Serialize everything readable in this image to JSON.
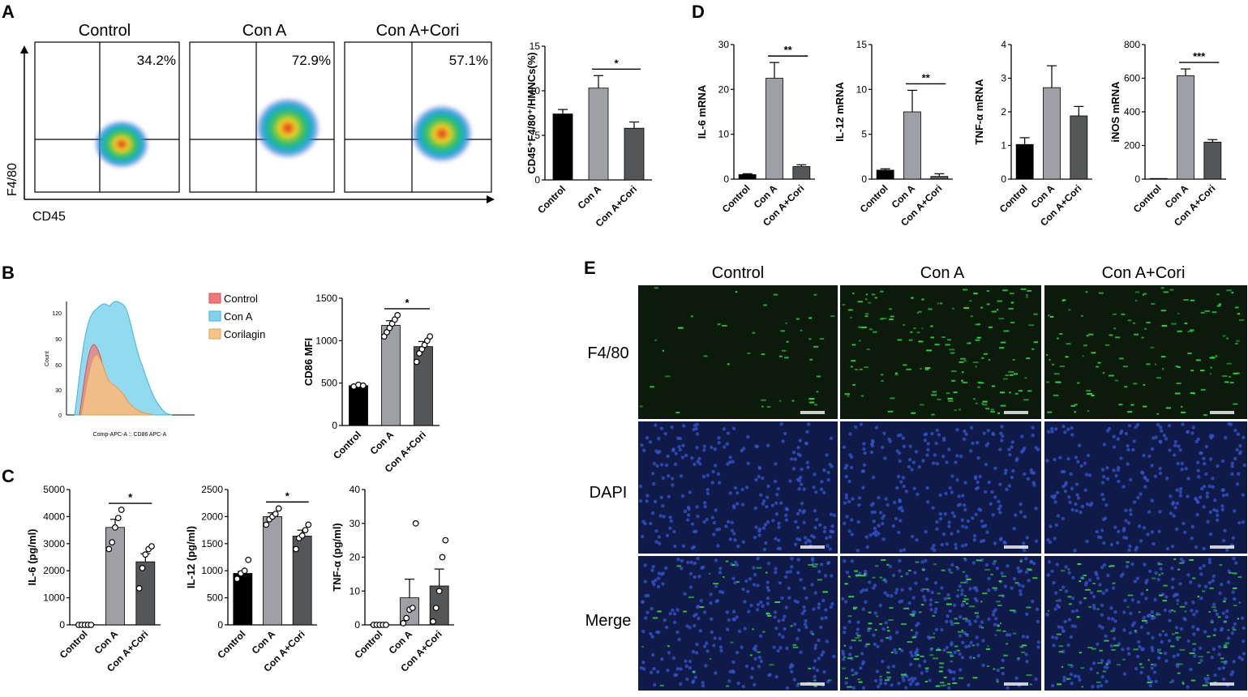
{
  "panels": {
    "A": {
      "label": "A",
      "flow": {
        "titles": [
          "Control",
          "Con A",
          "Con A+Cori"
        ],
        "percents": [
          "34.2%",
          "72.9%",
          "57.1%"
        ],
        "ylabel": "F4/80",
        "xlabel": "CD45"
      }
    },
    "B": {
      "label": "B",
      "legend": [
        "Control",
        "Con A",
        "Corilagin"
      ],
      "hist_ylabel": "Count",
      "hist_xlabel": "Comp-APC-A :: CD86 APC-A",
      "hist_yticks": [
        "0",
        "30",
        "60",
        "90",
        "120"
      ]
    },
    "C": {
      "label": "C"
    },
    "D": {
      "label": "D"
    },
    "E": {
      "label": "E",
      "columns": [
        "Control",
        "Con A",
        "Con A+Cori"
      ],
      "rows": [
        "F4/80",
        "DAPI",
        "Merge"
      ]
    }
  },
  "colors": {
    "control": "#000000",
    "conA": "#9ea0a5",
    "conACori": "#555658",
    "hist_control": "#f07a7a",
    "hist_conA": "#7fd4ec",
    "hist_cori": "#f3c486",
    "f480": "#2ecc40",
    "dapi": "#2a50c8"
  },
  "chart_data": [
    {
      "id": "A-bar",
      "type": "bar",
      "categories": [
        "Control",
        "Con A",
        "Con A+Cori"
      ],
      "values": [
        7.4,
        10.3,
        5.8
      ],
      "errors": [
        0.5,
        1.4,
        0.7
      ],
      "ylabel": "CD45⁺F4/80⁺/HMNCs(%)",
      "ylim": [
        0,
        15
      ],
      "yticks": [
        "0",
        "5",
        "10",
        "15"
      ],
      "sig": [
        {
          "from": 1,
          "to": 2,
          "label": "*"
        }
      ]
    },
    {
      "id": "B-bar",
      "type": "bar",
      "categories": [
        "Control",
        "Con A",
        "Con A+Cori"
      ],
      "values": [
        470,
        1180,
        930
      ],
      "errors": [
        12,
        55,
        60
      ],
      "points": [
        [
          460,
          480,
          470
        ],
        [
          1050,
          1100,
          1150,
          1200,
          1250,
          1300
        ],
        [
          750,
          850,
          900,
          950,
          1000,
          1050
        ]
      ],
      "ylabel": "CD86 MFI",
      "ylim": [
        0,
        1500
      ],
      "yticks": [
        "0",
        "500",
        "1000",
        "1500"
      ],
      "sig": [
        {
          "from": 1,
          "to": 2,
          "label": "*"
        }
      ]
    },
    {
      "id": "C-IL6",
      "type": "bar",
      "categories": [
        "Control",
        "Con A",
        "Con A+Cori"
      ],
      "values": [
        0,
        3600,
        2330
      ],
      "errors": [
        0,
        300,
        300
      ],
      "points": [
        [
          0,
          0,
          0,
          0,
          0
        ],
        [
          2800,
          3050,
          3600,
          3950,
          4250
        ],
        [
          1350,
          2100,
          2600,
          2800,
          2900
        ]
      ],
      "ylabel": "IL-6 (pg/ml)",
      "ylim": [
        0,
        5000
      ],
      "yticks": [
        "0",
        "1000",
        "2000",
        "3000",
        "4000",
        "5000"
      ],
      "sig": [
        {
          "from": 1,
          "to": 2,
          "label": "*"
        }
      ]
    },
    {
      "id": "C-IL12",
      "type": "bar",
      "categories": [
        "Control",
        "Con A",
        "Con A+Cori"
      ],
      "values": [
        950,
        2000,
        1640
      ],
      "errors": [
        40,
        70,
        110
      ],
      "points": [
        [
          850,
          950,
          1000,
          1200
        ],
        [
          1850,
          1950,
          2000,
          2050,
          2150
        ],
        [
          1400,
          1600,
          1650,
          1750,
          1850
        ]
      ],
      "ylabel": "IL-12 (pg/ml)",
      "ylim": [
        0,
        2500
      ],
      "yticks": [
        "0",
        "500",
        "1000",
        "1500",
        "2000",
        "2500"
      ],
      "sig": [
        {
          "from": 1,
          "to": 2,
          "label": "*"
        }
      ]
    },
    {
      "id": "C-TNF",
      "type": "bar",
      "categories": [
        "Control",
        "Con A",
        "Con A+Cori"
      ],
      "values": [
        0,
        8,
        11.5
      ],
      "errors": [
        0,
        5.5,
        5
      ],
      "points": [
        [
          0,
          0,
          0,
          0,
          0
        ],
        [
          0.5,
          2,
          4.5,
          5,
          30
        ],
        [
          1,
          5,
          10,
          20,
          25
        ]
      ],
      "ylabel": "TNF-α (pg/ml)",
      "ylim": [
        0,
        40
      ],
      "yticks": [
        "0",
        "10",
        "20",
        "30",
        "40"
      ],
      "sig": []
    },
    {
      "id": "D-IL6",
      "type": "bar",
      "categories": [
        "Control",
        "Con A",
        "Con A+Cori"
      ],
      "values": [
        1,
        22.5,
        2.8
      ],
      "errors": [
        0.2,
        3.5,
        0.4
      ],
      "ylabel": "IL-6 mRNA",
      "ylim": [
        0,
        30
      ],
      "yticks": [
        "0",
        "10",
        "20",
        "30"
      ],
      "sig": [
        {
          "from": 1,
          "to": 2,
          "label": "**"
        }
      ]
    },
    {
      "id": "D-IL12",
      "type": "bar",
      "categories": [
        "Control",
        "Con A",
        "Con A+Cori"
      ],
      "values": [
        1,
        7.5,
        0.3
      ],
      "errors": [
        0.15,
        2.4,
        0.3
      ],
      "ylabel": "IL-12 mRNA",
      "ylim": [
        0,
        15
      ],
      "yticks": [
        "0",
        "5",
        "10",
        "15"
      ],
      "sig": [
        {
          "from": 1,
          "to": 2,
          "label": "**"
        }
      ]
    },
    {
      "id": "D-TNF",
      "type": "bar",
      "categories": [
        "Control",
        "Con A",
        "Con A+Cori"
      ],
      "values": [
        1.03,
        2.72,
        1.88
      ],
      "errors": [
        0.2,
        0.65,
        0.28
      ],
      "ylabel": "TNF-α mRNA",
      "ylim": [
        0,
        4
      ],
      "yticks": [
        "0",
        "1",
        "2",
        "3",
        "4"
      ],
      "sig": []
    },
    {
      "id": "D-iNOS",
      "type": "bar",
      "categories": [
        "Control",
        "Con A",
        "Con A+Cori"
      ],
      "values": [
        0,
        615,
        220
      ],
      "errors": [
        0,
        40,
        15
      ],
      "ylabel": "iNOS mRNA",
      "ylim": [
        0,
        800
      ],
      "yticks": [
        "0",
        "200",
        "400",
        "600",
        "800"
      ],
      "sig": [
        {
          "from": 1,
          "to": 2,
          "label": "***"
        }
      ]
    }
  ]
}
